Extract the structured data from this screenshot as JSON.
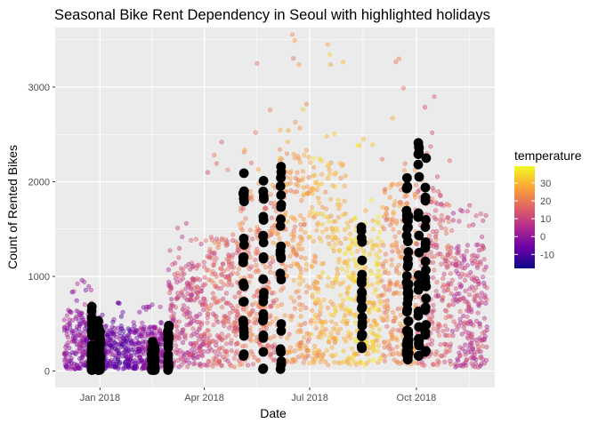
{
  "chart_data": {
    "type": "scatter",
    "title": "Seasonal Bike Rent Dependency in Seoul with highlighted holidays",
    "xlabel": "Date",
    "ylabel": "Count of Rented Bikes",
    "x_ticks": [
      "Jan 2018",
      "Apr 2018",
      "Jul 2018",
      "Oct 2018"
    ],
    "y_ticks": [
      0,
      1000,
      2000,
      3000
    ],
    "xlim": [
      "2017-12-01",
      "2018-11-30"
    ],
    "ylim": [
      0,
      3556
    ],
    "grid": true,
    "legend": {
      "title": "temperature",
      "placement": "right",
      "color_scale": "plasma",
      "ticks": [
        30,
        20,
        10,
        0,
        -10
      ],
      "range": [
        -17.8,
        39.4
      ],
      "colors": [
        "#0d0887",
        "#6a00a8",
        "#b12a90",
        "#e16462",
        "#fca636",
        "#f0f921"
      ]
    },
    "series": [
      {
        "description": "hourly rentals colored by temperature",
        "monthly_summary": [
          {
            "month": "2017-12",
            "typical_range": [
              20,
              650
            ],
            "max": 960,
            "mean_temp": -1.9
          },
          {
            "month": "2018-01",
            "typical_range": [
              20,
              480
            ],
            "max": 720,
            "mean_temp": -7.6
          },
          {
            "month": "2018-02",
            "typical_range": [
              20,
              470
            ],
            "max": 700,
            "mean_temp": -1.6
          },
          {
            "month": "2018-03",
            "typical_range": [
              40,
              1150
            ],
            "max": 1560,
            "mean_temp": 8.0
          },
          {
            "month": "2018-04",
            "typical_range": [
              40,
              1450
            ],
            "max": 2420,
            "mean_temp": 13.9
          },
          {
            "month": "2018-05",
            "typical_range": [
              60,
              1900
            ],
            "max": 3250,
            "mean_temp": 18.0
          },
          {
            "month": "2018-06",
            "typical_range": [
              80,
              2350
            ],
            "max": 3556,
            "mean_temp": 23.2
          },
          {
            "month": "2018-07",
            "typical_range": [
              60,
              2250
            ],
            "max": 3450,
            "mean_temp": 27.8
          },
          {
            "month": "2018-08",
            "typical_range": [
              60,
              1650
            ],
            "max": 2450,
            "mean_temp": 31.0
          },
          {
            "month": "2018-09",
            "typical_range": [
              60,
              2000
            ],
            "max": 3300,
            "mean_temp": 21.5
          },
          {
            "month": "2018-10",
            "typical_range": [
              60,
              1950
            ],
            "max": 2900,
            "mean_temp": 13.0
          },
          {
            "month": "2018-11",
            "typical_range": [
              40,
              1350
            ],
            "max": 1750,
            "mean_temp": 7.7
          }
        ]
      },
      {
        "description": "holiday hours (black points)",
        "color": "#000000",
        "holidays": [
          {
            "date": "2017-12-25",
            "range": [
              10,
              680
            ]
          },
          {
            "date": "2017-12-31",
            "range": [
              10,
              530
            ]
          },
          {
            "date": "2018-01-01",
            "range": [
              10,
              420
            ]
          },
          {
            "date": "2018-02-15",
            "range": [
              10,
              310
            ]
          },
          {
            "date": "2018-02-16",
            "range": [
              10,
              280
            ]
          },
          {
            "date": "2018-02-17",
            "range": [
              10,
              260
            ]
          },
          {
            "date": "2018-03-01",
            "range": [
              10,
              480
            ]
          },
          {
            "date": "2018-05-05",
            "range": [
              160,
              2090
            ]
          },
          {
            "date": "2018-05-22",
            "range": [
              20,
              2010
            ]
          },
          {
            "date": "2018-06-06",
            "range": [
              20,
              2160
            ]
          },
          {
            "date": "2018-08-15",
            "range": [
              240,
              1520
            ]
          },
          {
            "date": "2018-09-23",
            "range": [
              180,
              2040
            ]
          },
          {
            "date": "2018-09-24",
            "range": [
              120,
              1640
            ]
          },
          {
            "date": "2018-10-03",
            "range": [
              160,
              2410
            ]
          },
          {
            "date": "2018-10-09",
            "range": [
              200,
              2250
            ]
          }
        ]
      }
    ]
  }
}
